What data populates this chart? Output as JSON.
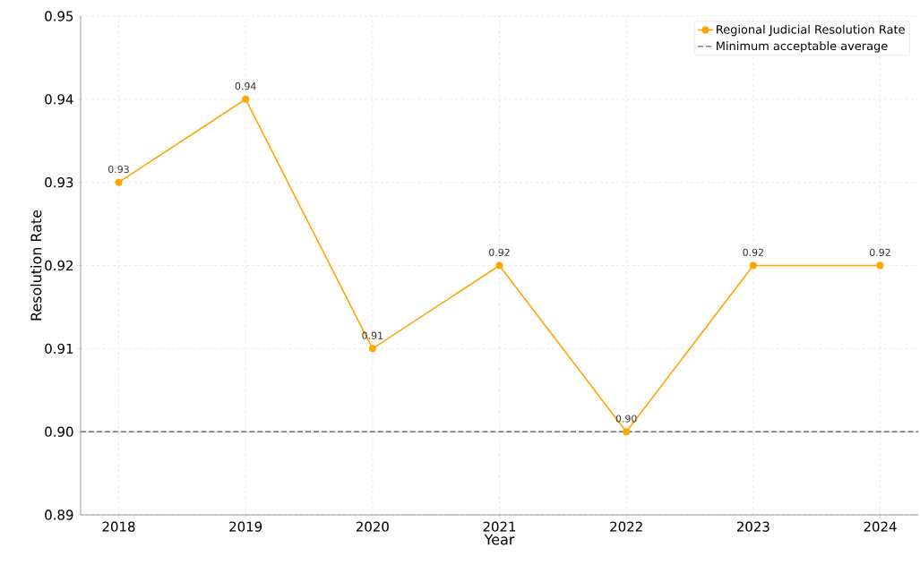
{
  "chart_data": {
    "type": "line",
    "xlabel": "Year",
    "ylabel": "Resolution Rate",
    "categories": [
      "2018",
      "2019",
      "2020",
      "2021",
      "2022",
      "2023",
      "2024"
    ],
    "series": [
      {
        "name": "Regional Judicial Resolution Rate",
        "color": "#ffa500",
        "values": [
          0.93,
          0.94,
          0.91,
          0.92,
          0.9,
          0.92,
          0.92
        ],
        "value_labels": [
          "0.93",
          "0.94",
          "0.91",
          "0.92",
          "0.90",
          "0.92",
          "0.92"
        ]
      }
    ],
    "ylim": [
      0.89,
      0.95
    ],
    "yticks": [
      0.89,
      {
        "value": 0.9,
        "label": "0.90"
      },
      0.91,
      0.92,
      0.93,
      0.94,
      0.95
    ],
    "ref_lines": [
      {
        "axis": "y",
        "value": 0.9,
        "label": "Minimum acceptable average",
        "color": "#808080",
        "line_style": "dashed"
      }
    ],
    "grid": true,
    "legend": "top right",
    "marker": "circle",
    "line_style": "solid"
  }
}
